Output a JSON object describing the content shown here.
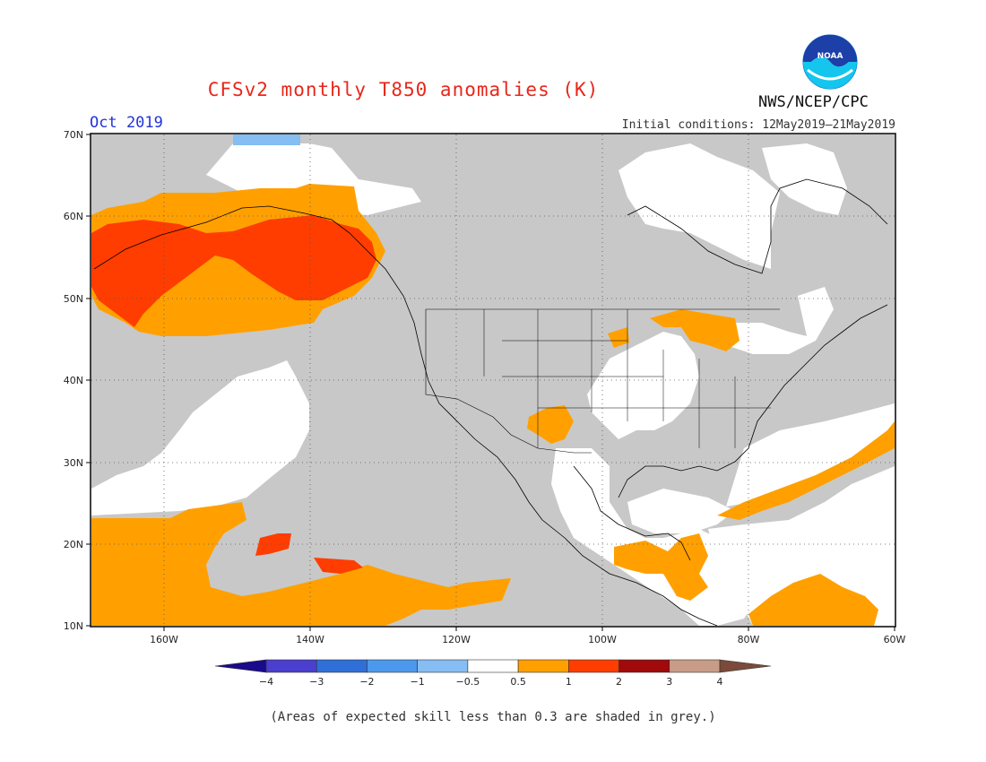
{
  "header": {
    "title": "CFSv2 monthly T850 anomalies (K)",
    "month": "Oct 2019",
    "initial_conditions": "Initial conditions: 12May2019–21May2019",
    "agency": "NWS/NCEP/CPC",
    "logo_text": "NOAA"
  },
  "map": {
    "lat_labels": [
      "70N",
      "60N",
      "50N",
      "40N",
      "30N",
      "20N",
      "10N"
    ],
    "lon_labels": [
      "160W",
      "140W",
      "120W",
      "100W",
      "80W",
      "60W"
    ],
    "lat_range": [
      10,
      70
    ],
    "lon_range": [
      -170,
      -60
    ],
    "grid": "dotted"
  },
  "colorbar": {
    "labels": [
      "−4",
      "−3",
      "−2",
      "−1",
      "−0.5",
      "0.5",
      "1",
      "2",
      "3",
      "4"
    ],
    "colors": [
      "#1a0a8c",
      "#4a3fcf",
      "#2f6fd8",
      "#4c98ec",
      "#86bdf2",
      "#ffffff",
      "#ffa000",
      "#ff3d00",
      "#a00a0a",
      "#c89c88",
      "#7a4a3a"
    ]
  },
  "footer": {
    "note": "(Areas of expected skill less than 0.3 are shaded in grey.)"
  },
  "colors": {
    "grey_low_skill": "#c8c8c8",
    "orange": "#ffa000",
    "red": "#ff3d00",
    "light_blue": "#86bdf2",
    "title_red": "#e8261a",
    "month_blue": "#2233dd"
  }
}
